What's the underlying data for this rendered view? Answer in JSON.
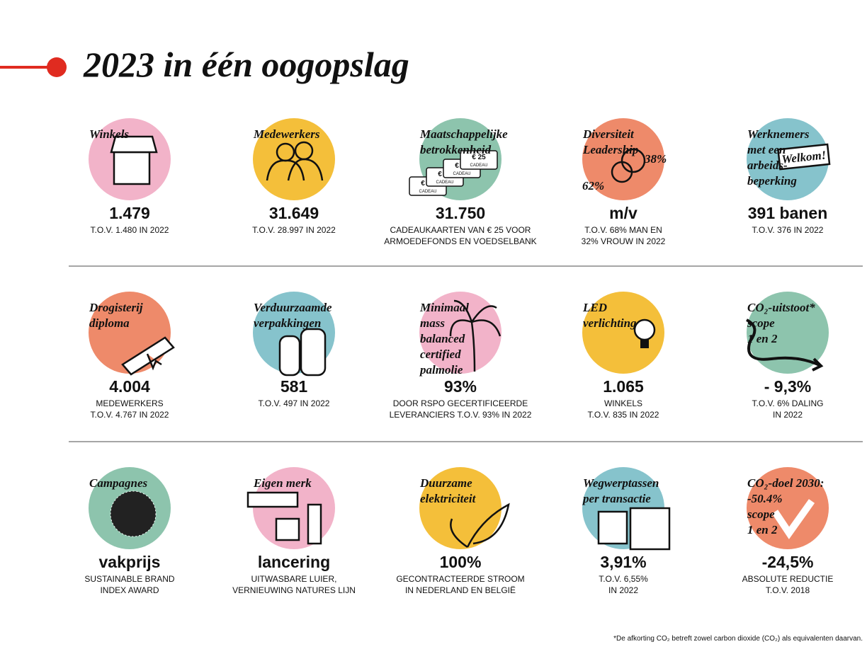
{
  "title": "2023 in één oogopslag",
  "items": [
    {
      "label": [
        "Winkels"
      ],
      "value": "1.479",
      "note": [
        "T.O.V. 1.480 IN 2022"
      ],
      "color": "#f2b3c9"
    },
    {
      "label": [
        "Medewerkers"
      ],
      "value": "31.649",
      "note": [
        "T.O.V. 28.997 IN 2022"
      ],
      "color": "#f4bf3a"
    },
    {
      "label": [
        "Maatschappelijke",
        "betrokkenheid"
      ],
      "value": "31.750",
      "note": [
        "CADEAUKAARTEN VAN € 25 VOOR",
        "ARMOEDEFONDS EN VOEDSELBANK"
      ],
      "color": "#8dc4ad",
      "icon_texts": [
        "€ 25",
        "CADEAU"
      ]
    },
    {
      "label": [
        "Diversiteit",
        "Leadership"
      ],
      "value": "m/v",
      "note": [
        "T.O.V. 68% MAN EN",
        "32% VROUW IN 2022"
      ],
      "color": "#ee8a6a",
      "icon_texts": [
        "38%",
        "62%"
      ]
    },
    {
      "label": [
        "Werknemers",
        "met een",
        "arbeids-",
        "beperking"
      ],
      "value": "391 banen",
      "note": [
        "T.O.V. 376 IN 2022"
      ],
      "color": "#86c3cc",
      "icon_texts": [
        "Welkom!"
      ]
    },
    {
      "label": [
        "Drogisterij",
        "diploma"
      ],
      "value": "4.004",
      "note": [
        "MEDEWERKERS",
        "T.O.V. 4.767 IN 2022"
      ],
      "color": "#ee8a6a"
    },
    {
      "label": [
        "Verduurzaamde",
        "verpakkingen"
      ],
      "value": "581",
      "note": [
        "T.O.V. 497 IN 2022"
      ],
      "color": "#86c3cc"
    },
    {
      "label": [
        "Minimaal",
        "mass",
        "balanced",
        "certified",
        "palmolie"
      ],
      "value": "93%",
      "note": [
        "DOOR RSPO GECERTIFICEERDE",
        "LEVERANCIERS T.O.V. 93% IN 2022"
      ],
      "color": "#f2b3c9"
    },
    {
      "label": [
        "LED",
        "verlichting"
      ],
      "value": "1.065",
      "note": [
        "WINKELS",
        "T.O.V. 835 IN 2022"
      ],
      "color": "#f4bf3a"
    },
    {
      "label": [
        "CO₂-uitstoot*",
        "scope",
        "1 en 2"
      ],
      "value": "- 9,3%",
      "note": [
        "T.O.V. 6% DALING",
        "IN 2022"
      ],
      "color": "#8dc4ad"
    },
    {
      "label": [
        "Campagnes"
      ],
      "value": "vakprijs",
      "note": [
        "SUSTAINABLE BRAND",
        "INDEX AWARD"
      ],
      "color": "#8dc4ad"
    },
    {
      "label": [
        "Eigen merk"
      ],
      "value": "lancering",
      "note": [
        "UITWASBARE LUIER,",
        "VERNIEUWING NATURES LIJN"
      ],
      "color": "#f2b3c9"
    },
    {
      "label": [
        "Duurzame",
        "elektriciteit"
      ],
      "value": "100%",
      "note": [
        "GECONTRACTEERDE STROOM",
        "IN NEDERLAND EN BELGIË"
      ],
      "color": "#f4bf3a"
    },
    {
      "label": [
        "Wegwerptassen",
        "per transactie"
      ],
      "value": "3,91%",
      "note": [
        "T.O.V. 6,55%",
        "IN 2022"
      ],
      "color": "#86c3cc"
    },
    {
      "label": [
        "CO₂-doel 2030:",
        "-50.4%",
        "scope",
        "1 en 2"
      ],
      "value": "-24,5%",
      "note": [
        "ABSOLUTE REDUCTIE",
        "T.O.V. 2018"
      ],
      "color": "#ee8a6a"
    }
  ],
  "footnote": "*De afkorting CO₂ betreft zowel carbon dioxide (CO₂) als equivalenten daarvan."
}
